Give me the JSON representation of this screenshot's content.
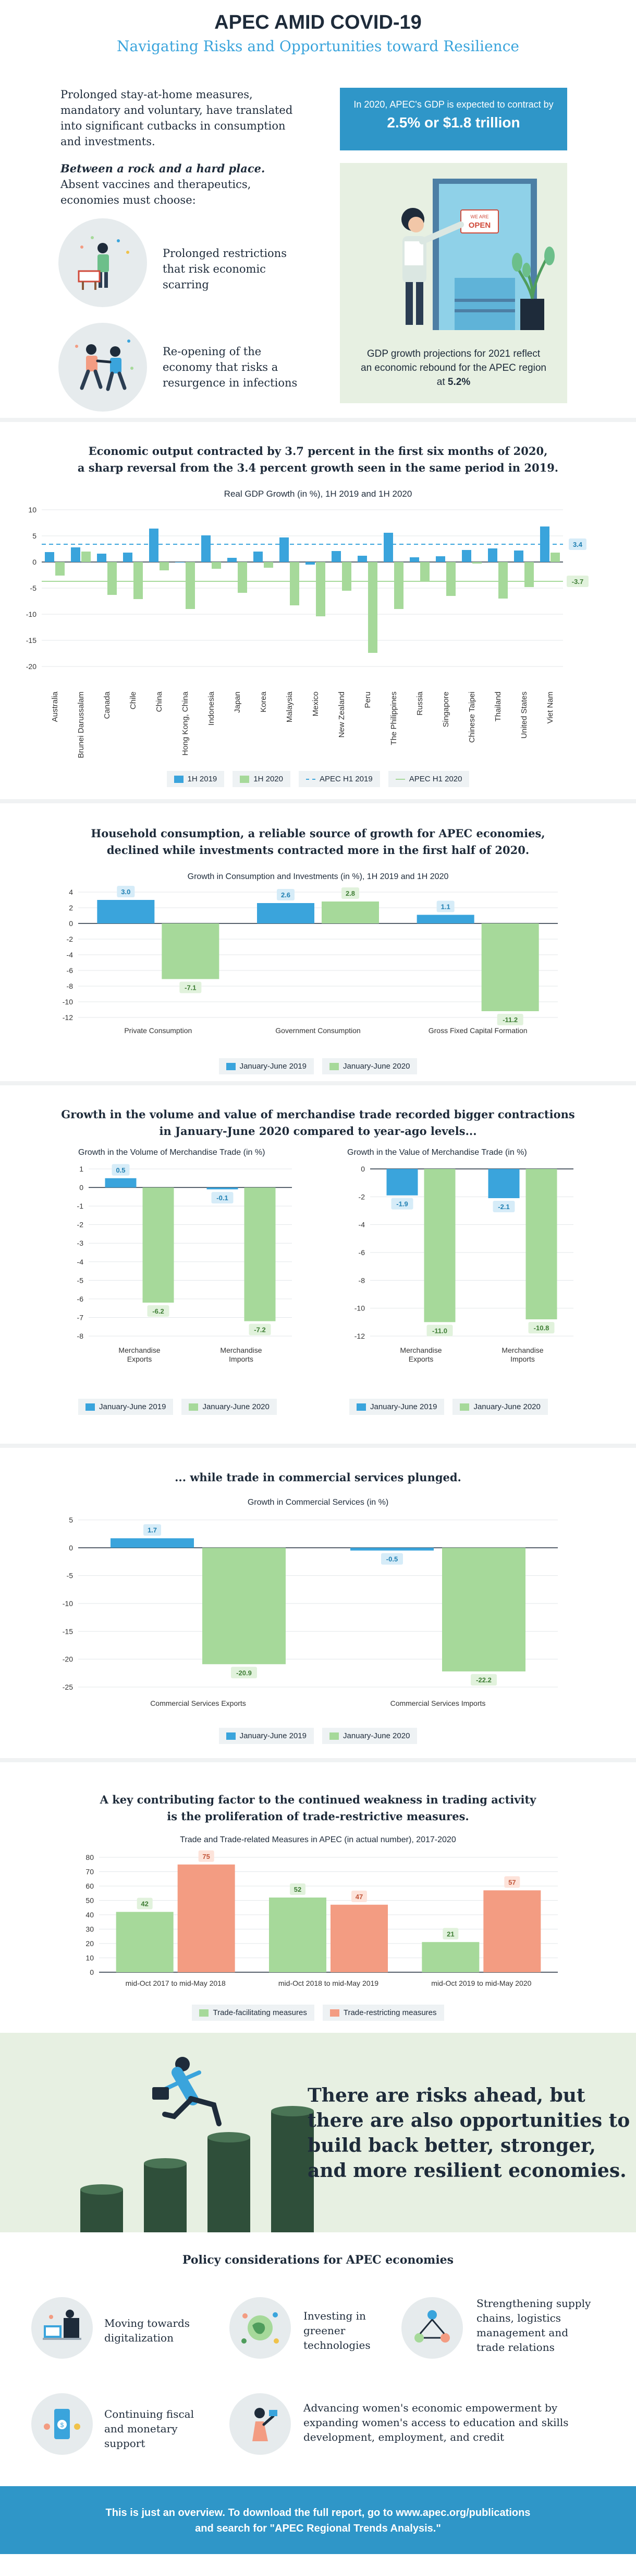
{
  "header": {
    "title": "APEC AMID COVID-19",
    "subtitle": "Navigating Risks and Opportunities toward Resilience"
  },
  "intro": {
    "para1": "Prolonged stay-at-home measures, mandatory and voluntary, have translated into significant cutbacks in consumption and investments.",
    "para2_em": "Between a rock and a hard place.",
    "para2_rest": " Absent vaccines and therapeutics, economies must choose:",
    "choices": [
      {
        "text": "Prolonged restrictions that risk economic scarring",
        "icon": "restrictions-icon"
      },
      {
        "text": "Re-opening of the economy that risks a resurgence in infections",
        "icon": "reopening-icon"
      }
    ],
    "gdp_box_line1": "In 2020, APEC's GDP is expected to contract by",
    "gdp_box_line2": "2.5% or $1.8 trillion",
    "open_sign": "OPEN",
    "growth_text_1": "GDP growth projections for 2021 reflect an economic rebound for the APEC region at ",
    "growth_text_bold": "5.2%"
  },
  "colors": {
    "blue": "#3aa4dc",
    "green": "#a6d99a",
    "coral": "#f39c82",
    "navy": "#1e2b3a",
    "footer": "#2f96c8"
  },
  "gdp_section": {
    "heading_l1": "Economic output contracted by 3.7 percent in the first six months of 2020,",
    "heading_l2": "a sharp reversal from the 3.4 percent growth seen in the same period in 2019.",
    "chart_title": "Real GDP Growth (in %), 1H 2019 and 1H 2020",
    "avg_2019_label": "3.4",
    "avg_2020_label": "-3.7",
    "legend": [
      "1H 2019",
      "1H 2020",
      "APEC H1 2019",
      "APEC H1 2020"
    ]
  },
  "consumption_section": {
    "heading_l1": "Household consumption, a reliable source of growth for APEC economies,",
    "heading_l2": "declined while investments contracted more in the first half of 2020.",
    "chart_title": "Growth in Consumption and Investments (in %), 1H 2019 and 1H 2020",
    "legend": [
      "January-June 2019",
      "January-June 2020"
    ]
  },
  "trade_section": {
    "heading_l1": "Growth in the volume and value of merchandise trade recorded bigger contractions",
    "heading_l2": "in January-June 2020 compared to year-ago levels...",
    "chart1_title": "Growth in the Volume of Merchandise Trade (in %)",
    "chart2_title": "Growth in the Value of Merchandise Trade (in %)",
    "legend": [
      "January-June 2019",
      "January-June 2020"
    ]
  },
  "services_section": {
    "heading": "... while trade in commercial services plunged.",
    "chart_title": "Growth in Commercial Services (in %)",
    "legend": [
      "January-June 2019",
      "January-June 2020"
    ]
  },
  "measures_section": {
    "heading_l1": "A key contributing factor to the continued weakness in trading activity",
    "heading_l2": "is the proliferation of trade-restrictive measures.",
    "chart_title": "Trade and Trade-related Measures in APEC (in actual number), 2017-2020",
    "legend": [
      "Trade-facilitating measures",
      "Trade-restricting measures"
    ]
  },
  "risks_banner": {
    "line1": "There are risks ahead, but",
    "line2": "there are also opportunities to",
    "line3": "build back better, stronger,",
    "line4": "and more resilient economies."
  },
  "policy": {
    "heading": "Policy considerations for APEC economies",
    "items": [
      {
        "text": "Moving towards digitalization",
        "icon": "digitalization-icon"
      },
      {
        "text": "Investing in greener technologies",
        "icon": "green-tech-icon"
      },
      {
        "text": "Strengthening supply chains, logistics management and trade relations",
        "icon": "supply-chain-icon"
      },
      {
        "text": "Continuing fiscal and monetary support",
        "icon": "fiscal-support-icon"
      },
      {
        "text": "Advancing women's economic empowerment by expanding women's access to education and skills development, employment, and credit",
        "icon": "women-empowerment-icon"
      }
    ]
  },
  "footer": {
    "line1": "This is just an overview. To download the full report, go to www.apec.org/publications",
    "line2": "and search for \"APEC Regional Trends Analysis.\""
  },
  "chart_data": [
    {
      "id": "gdp",
      "type": "bar",
      "title": "Real GDP Growth (in %), 1H 2019 and 1H 2020",
      "categories": [
        "Australia",
        "Brunei Darussalam",
        "Canada",
        "Chile",
        "China",
        "Hong Kong, China",
        "Indonesia",
        "Japan",
        "Korea",
        "Malaysia",
        "Mexico",
        "New Zealand",
        "Peru",
        "The Philippines",
        "Russia",
        "Singapore",
        "Chinese Taipei",
        "Thailand",
        "United States",
        "Viet Nam"
      ],
      "series": [
        {
          "name": "1H 2019",
          "values": [
            1.9,
            2.8,
            1.6,
            1.8,
            6.4,
            0.0,
            5.1,
            0.8,
            2.0,
            4.7,
            -0.5,
            2.1,
            1.2,
            5.6,
            0.9,
            1.1,
            2.3,
            2.6,
            2.2,
            6.8
          ]
        },
        {
          "name": "1H 2020",
          "values": [
            -2.6,
            2.0,
            -6.3,
            -7.1,
            -1.6,
            -9.0,
            -1.3,
            -5.9,
            -1.1,
            -8.3,
            -10.4,
            -5.5,
            -17.4,
            -9.0,
            -3.6,
            -6.5,
            -0.3,
            -7.0,
            -4.8,
            1.8
          ]
        }
      ],
      "reference_lines": [
        {
          "name": "APEC H1 2019",
          "value": 3.4
        },
        {
          "name": "APEC H1 2020",
          "value": -3.7
        }
      ],
      "ylim": [
        -20,
        10
      ],
      "yticks": [
        10,
        5,
        0,
        -5,
        -10,
        -15,
        -20
      ]
    },
    {
      "id": "consumption",
      "type": "bar",
      "title": "Growth in Consumption and Investments (in %), 1H 2019 and 1H 2020",
      "categories": [
        "Private Consumption",
        "Government Consumption",
        "Gross Fixed Capital Formation"
      ],
      "series": [
        {
          "name": "January-June 2019",
          "values": [
            3.0,
            2.6,
            1.1
          ],
          "labels": [
            "3.0",
            "2.6",
            "1.1"
          ]
        },
        {
          "name": "January-June 2020",
          "values": [
            -7.1,
            2.8,
            -11.2
          ],
          "labels": [
            "-7.1",
            "2.8",
            "-11.2"
          ]
        }
      ],
      "ylim": [
        -12,
        4
      ],
      "yticks": [
        4,
        2,
        0,
        -2,
        -4,
        -6,
        -8,
        -10,
        -12
      ]
    },
    {
      "id": "trade_volume",
      "type": "bar",
      "title": "Growth in the Volume of Merchandise Trade (in %)",
      "categories": [
        "Merchandise Exports",
        "Merchandise Imports"
      ],
      "series": [
        {
          "name": "January-June 2019",
          "values": [
            0.5,
            -0.1
          ],
          "labels": [
            "0.5",
            "-0.1"
          ]
        },
        {
          "name": "January-June 2020",
          "values": [
            -6.2,
            -7.2
          ],
          "labels": [
            "-6.2",
            "-7.2"
          ]
        }
      ],
      "ylim": [
        -8,
        1
      ],
      "yticks": [
        1,
        0,
        -1,
        -2,
        -3,
        -4,
        -5,
        -6,
        -7,
        -8
      ]
    },
    {
      "id": "trade_value",
      "type": "bar",
      "title": "Growth in the Value of Merchandise Trade (in %)",
      "categories": [
        "Merchandise Exports",
        "Merchandise Imports"
      ],
      "series": [
        {
          "name": "January-June 2019",
          "values": [
            -1.9,
            -2.1
          ],
          "labels": [
            "-1.9",
            "-2.1"
          ]
        },
        {
          "name": "January-June 2020",
          "values": [
            -11.0,
            -10.8
          ],
          "labels": [
            "-11.0",
            "-10.8"
          ]
        }
      ],
      "ylim": [
        -12,
        0
      ],
      "yticks": [
        0,
        -2,
        -4,
        -6,
        -8,
        -10,
        -12
      ]
    },
    {
      "id": "services",
      "type": "bar",
      "title": "Growth in Commercial Services (in %)",
      "categories": [
        "Commercial Services Exports",
        "Commercial Services Imports"
      ],
      "series": [
        {
          "name": "January-June 2019",
          "values": [
            1.7,
            -0.5
          ],
          "labels": [
            "1.7",
            "-0.5"
          ]
        },
        {
          "name": "January-June 2020",
          "values": [
            -20.9,
            -22.2
          ],
          "labels": [
            "-20.9",
            "-22.2"
          ]
        }
      ],
      "ylim": [
        -25,
        5
      ],
      "yticks": [
        5,
        0,
        -5,
        -10,
        -15,
        -20,
        -25
      ]
    },
    {
      "id": "measures",
      "type": "bar",
      "title": "Trade and Trade-related Measures in APEC (in actual number), 2017-2020",
      "categories": [
        "mid-Oct 2017 to mid-May 2018",
        "mid-Oct 2018 to mid-May 2019",
        "mid-Oct 2019 to mid-May 2020"
      ],
      "series": [
        {
          "name": "Trade-facilitating measures",
          "values": [
            42,
            52,
            21
          ],
          "labels": [
            "42",
            "52",
            "21"
          ]
        },
        {
          "name": "Trade-restricting measures",
          "values": [
            75,
            47,
            57
          ],
          "labels": [
            "75",
            "47",
            "57"
          ]
        }
      ],
      "ylim": [
        0,
        80
      ],
      "yticks": [
        80,
        70,
        60,
        50,
        40,
        30,
        20,
        10,
        0
      ]
    }
  ]
}
